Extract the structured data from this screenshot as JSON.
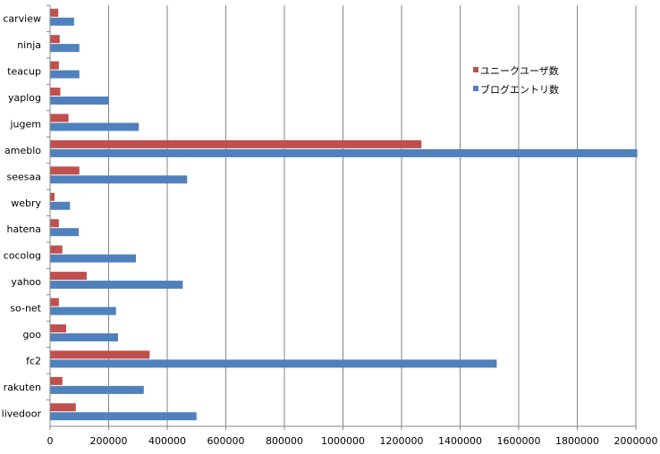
{
  "chart_data": {
    "type": "bar",
    "orientation": "horizontal",
    "title": "",
    "xlabel": "",
    "ylabel": "",
    "categories": [
      "carview",
      "ninja",
      "teacup",
      "yaplog",
      "jugem",
      "ameblo",
      "seesaa",
      "webry",
      "hatena",
      "cocolog",
      "yahoo",
      "so-net",
      "goo",
      "fc2",
      "rakuten",
      "livedoor"
    ],
    "series": [
      {
        "name": "ユニークユーザ数",
        "color": "#c0504d",
        "values": [
          28000,
          33000,
          30000,
          35000,
          63000,
          1268000,
          100000,
          15000,
          30000,
          42000,
          125000,
          30000,
          55000,
          340000,
          42000,
          88000
        ]
      },
      {
        "name": "ブログエントリ数",
        "color": "#4f81bd",
        "values": [
          82000,
          100000,
          100000,
          200000,
          303000,
          2005000,
          468000,
          68000,
          98000,
          293000,
          453000,
          225000,
          232000,
          1525000,
          320000,
          500000
        ]
      }
    ],
    "xlim": [
      0,
      2000000
    ],
    "xticks": [
      "0",
      "200000",
      "400000",
      "600000",
      "800000",
      "1000000",
      "1200000",
      "1400000",
      "1600000",
      "1800000",
      "2000000"
    ],
    "grid": true,
    "legend_position": "right"
  }
}
